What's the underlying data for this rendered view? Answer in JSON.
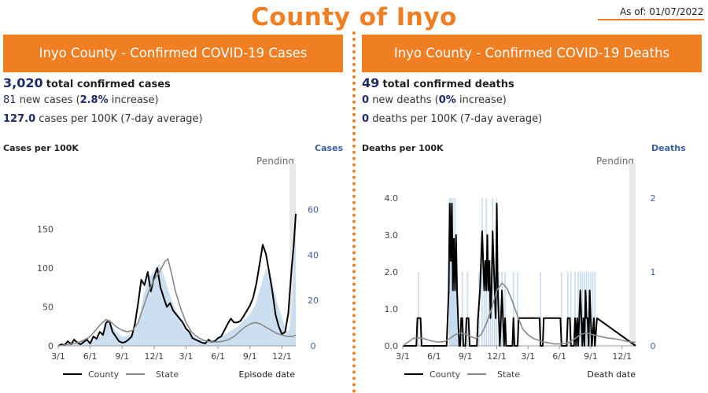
{
  "header": {
    "title": "County of Inyo",
    "as_of": "As of: 01/07/2022",
    "accent_color": "#f07f23"
  },
  "panels": [
    {
      "banner": "Inyo County - Confirmed COVID-19 Cases",
      "total_value": "3,020",
      "total_label": "total confirmed cases",
      "new_value": "81",
      "new_label_pre": "new cases (",
      "new_pct": "2.8%",
      "new_label_post": " increase)",
      "rate_value": "127.0",
      "rate_label": "cases per 100K (7-day average)"
    },
    {
      "banner": "Inyo County - Confirmed COVID-19 Deaths",
      "total_value": "49",
      "total_label": "total confirmed deaths",
      "new_value": "0",
      "new_label_pre": "new deaths (",
      "new_pct": "0%",
      "new_label_post": " increase)",
      "rate_value": "0",
      "rate_label": "deaths per 100K (7-day average)"
    }
  ],
  "chart_data": [
    {
      "type": "line",
      "left_axis_label": "Cases per 100K",
      "right_axis_label": "Cases",
      "pending_label": "Pending",
      "xlabel": "Episode date",
      "x_ticks": [
        "3/1",
        "6/1",
        "9/1",
        "12/1",
        "3/1",
        "6/1",
        "9/1",
        "12/1"
      ],
      "y_left_ticks": [
        "0",
        "50",
        "100",
        "150"
      ],
      "y_right_ticks": [
        "0",
        "20",
        "40",
        "60"
      ],
      "ylim_left": [
        0,
        190
      ],
      "ylim_right": [
        0,
        65
      ],
      "xlim": [
        0,
        22.3
      ],
      "legend": [
        {
          "name": "County",
          "color": "#000000"
        },
        {
          "name": "State",
          "color": "#888888"
        }
      ],
      "series": [
        {
          "name": "County",
          "color": "#000000",
          "x": [
            0,
            0.3,
            0.6,
            0.9,
            1.2,
            1.5,
            1.8,
            2.1,
            2.4,
            2.7,
            3.0,
            3.3,
            3.6,
            3.9,
            4.2,
            4.5,
            4.8,
            5.1,
            5.4,
            5.7,
            6.0,
            6.3,
            6.6,
            6.9,
            7.2,
            7.5,
            7.8,
            8.1,
            8.4,
            8.7,
            9.0,
            9.3,
            9.6,
            9.9,
            10.2,
            10.5,
            10.8,
            11.1,
            11.4,
            11.7,
            12.0,
            12.3,
            12.6,
            12.9,
            13.2,
            13.5,
            13.8,
            14.1,
            14.4,
            14.7,
            15.0,
            15.3,
            15.6,
            15.9,
            16.2,
            16.5,
            16.8,
            17.1,
            17.4,
            17.7,
            18.0,
            18.3,
            18.6,
            18.9,
            19.2,
            19.5,
            19.8,
            20.1,
            20.4,
            20.7,
            21.0,
            21.3,
            21.6,
            21.9,
            22.1,
            22.3
          ],
          "y": [
            0,
            2,
            1,
            6,
            2,
            8,
            4,
            2,
            5,
            8,
            3,
            12,
            9,
            18,
            14,
            30,
            32,
            18,
            12,
            6,
            4,
            5,
            8,
            12,
            28,
            55,
            85,
            78,
            95,
            70,
            88,
            100,
            75,
            62,
            50,
            55,
            45,
            40,
            35,
            30,
            22,
            18,
            10,
            8,
            6,
            4,
            3,
            8,
            5,
            6,
            10,
            12,
            20,
            28,
            35,
            30,
            30,
            32,
            38,
            45,
            52,
            62,
            80,
            105,
            130,
            118,
            95,
            70,
            40,
            25,
            15,
            18,
            42,
            98,
            128,
            170
          ]
        },
        {
          "name": "State",
          "color": "#888888",
          "x": [
            0,
            0.5,
            1,
            1.5,
            2,
            2.5,
            3,
            3.5,
            4,
            4.5,
            5,
            5.5,
            6,
            6.5,
            7,
            7.5,
            8,
            8.5,
            9,
            9.5,
            10,
            10.3,
            10.6,
            11,
            11.5,
            12,
            12.5,
            13,
            13.5,
            14,
            14.5,
            15,
            15.5,
            16,
            16.5,
            17,
            17.5,
            18,
            18.5,
            19,
            19.5,
            20,
            20.5,
            21,
            21.5,
            22,
            22.3
          ],
          "y": [
            0,
            1,
            2,
            3,
            5,
            8,
            12,
            20,
            28,
            34,
            30,
            24,
            20,
            18,
            20,
            30,
            50,
            70,
            85,
            95,
            108,
            112,
            95,
            70,
            48,
            30,
            18,
            12,
            8,
            6,
            5,
            5,
            6,
            8,
            12,
            18,
            24,
            28,
            30,
            28,
            24,
            20,
            16,
            14,
            12,
            12,
            14
          ]
        },
        {
          "name": "Cases",
          "axis": "right",
          "color": "#c7dbef",
          "x": [
            0,
            1,
            2,
            3,
            4,
            4.6,
            5,
            5.5,
            6,
            7,
            7.5,
            8,
            8.5,
            9,
            9.5,
            10,
            10.5,
            11,
            11.5,
            12,
            13,
            14,
            15,
            16,
            17,
            18,
            18.5,
            19,
            19.5,
            20,
            20.5,
            21,
            21.5,
            21.8,
            22,
            22.3
          ],
          "y": [
            0,
            0.5,
            1,
            2,
            4,
            12,
            9,
            6,
            4,
            5,
            10,
            22,
            30,
            33,
            36,
            30,
            22,
            16,
            12,
            8,
            3,
            2,
            3,
            6,
            9,
            14,
            18,
            26,
            34,
            30,
            20,
            12,
            6,
            8,
            20,
            65
          ]
        }
      ]
    },
    {
      "type": "line",
      "left_axis_label": "Deaths per 100K",
      "right_axis_label": "Deaths",
      "pending_label": "Pending",
      "xlabel": "Death date",
      "x_ticks": [
        "3/1",
        "6/1",
        "9/1",
        "12/1",
        "3/1",
        "6/1",
        "9/1",
        "12/1"
      ],
      "y_left_ticks": [
        "0.0",
        "1.0",
        "2.0",
        "3.0",
        "4.0"
      ],
      "y_right_ticks": [
        "0",
        "1",
        "2"
      ],
      "ylim_left": [
        0,
        4.0
      ],
      "ylim_right": [
        0,
        2
      ],
      "xlim": [
        0,
        22.3
      ],
      "legend": [
        {
          "name": "County",
          "color": "#000000"
        },
        {
          "name": "State",
          "color": "#888888"
        }
      ],
      "series": [
        {
          "name": "County",
          "color": "#000000",
          "x": [
            0,
            1.3,
            1.4,
            1.7,
            1.8,
            4.2,
            4.3,
            4.4,
            4.5,
            4.6,
            4.7,
            4.8,
            4.9,
            5.0,
            5.1,
            5.2,
            5.3,
            5.4,
            5.5,
            5.6,
            5.7,
            5.8,
            6.0,
            6.1,
            6.3,
            6.4,
            7.1,
            7.2,
            7.4,
            7.6,
            7.8,
            7.9,
            8.0,
            8.1,
            8.2,
            8.3,
            8.4,
            8.5,
            8.6,
            8.7,
            8.8,
            8.9,
            9.0,
            9.1,
            9.2,
            9.3,
            9.4,
            9.5,
            9.6,
            9.7,
            9.8,
            9.9,
            10.0,
            10.5,
            10.6,
            10.7,
            11.0,
            11.1,
            13.1,
            13.2,
            13.4,
            13.5,
            15.1,
            15.2,
            15.7,
            15.8,
            16.0,
            16.1,
            16.4,
            16.5,
            16.6,
            16.7,
            16.8,
            16.9,
            17.0,
            17.1,
            17.2,
            17.3,
            17.4,
            17.5,
            17.6,
            17.7,
            17.8,
            17.9,
            18.0,
            18.1,
            18.3,
            18.4,
            18.6,
            22.3
          ],
          "y": [
            0,
            0,
            0.75,
            0.75,
            0,
            0,
            0.75,
            1.5,
            3.85,
            2.3,
            3.85,
            1.5,
            2.9,
            1.5,
            3.0,
            1.5,
            0.75,
            0,
            0,
            0.75,
            0.75,
            0,
            0,
            0.75,
            0.75,
            0,
            0,
            0.75,
            1.5,
            3.1,
            1.5,
            2.3,
            1.5,
            3.0,
            1.5,
            2.3,
            0.75,
            1.5,
            3.1,
            2.3,
            1.5,
            0.75,
            3.85,
            1.5,
            0.75,
            0,
            0.75,
            1.5,
            0.75,
            0,
            0.75,
            0,
            0,
            0,
            0.75,
            0,
            0,
            0.75,
            0.75,
            0,
            0,
            0.75,
            0.75,
            0,
            0,
            0.75,
            0.75,
            0,
            0,
            0.75,
            0,
            0.75,
            0,
            0.75,
            1.5,
            0.75,
            0,
            0.75,
            0,
            1.5,
            0.75,
            0.75,
            0,
            1.5,
            0.75,
            0,
            0.75,
            0,
            0.75,
            0
          ]
        },
        {
          "name": "State",
          "color": "#888888",
          "x": [
            0,
            0.5,
            1,
            1.5,
            2,
            2.5,
            3,
            3.5,
            4,
            4.5,
            5,
            5.5,
            6,
            6.5,
            7,
            7.5,
            8,
            8.5,
            9,
            9.5,
            10,
            10.5,
            11,
            11.5,
            12,
            12.5,
            13,
            13.5,
            14,
            14.5,
            15,
            15.5,
            16,
            16.5,
            17,
            17.5,
            18,
            18.5,
            19,
            19.5,
            20,
            20.5,
            21,
            21.5,
            22,
            22.3
          ],
          "y": [
            0,
            0.1,
            0.2,
            0.22,
            0.2,
            0.15,
            0.12,
            0.1,
            0.12,
            0.2,
            0.3,
            0.35,
            0.32,
            0.25,
            0.2,
            0.3,
            0.6,
            1.0,
            1.5,
            1.7,
            1.55,
            1.2,
            0.8,
            0.45,
            0.3,
            0.2,
            0.15,
            0.1,
            0.08,
            0.05,
            0.05,
            0.06,
            0.1,
            0.2,
            0.3,
            0.35,
            0.32,
            0.28,
            0.25,
            0.22,
            0.2,
            0.18,
            0.15,
            0.12,
            0.1,
            0.1
          ]
        },
        {
          "name": "Deaths",
          "axis": "right",
          "color": "#c7dbef",
          "bars_x": [
            1.5,
            4.5,
            4.6,
            4.7,
            4.8,
            4.9,
            5.0,
            5.1,
            5.2,
            5.7,
            6.2,
            7.3,
            7.6,
            7.8,
            8.0,
            8.2,
            8.4,
            8.6,
            8.8,
            9.0,
            9.2,
            9.5,
            9.8,
            10.6,
            11.0,
            13.2,
            15.2,
            15.8,
            16.1,
            16.5,
            16.8,
            17.0,
            17.2,
            17.4,
            17.6,
            17.8,
            18.0,
            18.2,
            18.4
          ],
          "bars_y": [
            1,
            2,
            2,
            1,
            2,
            1,
            2,
            1,
            1,
            1,
            1,
            1,
            2,
            1,
            2,
            1,
            1,
            2,
            1,
            2,
            1,
            1,
            1,
            1,
            1,
            1,
            1,
            1,
            1,
            1,
            1,
            1,
            1,
            1,
            1,
            1,
            1,
            1,
            1
          ]
        }
      ]
    }
  ]
}
